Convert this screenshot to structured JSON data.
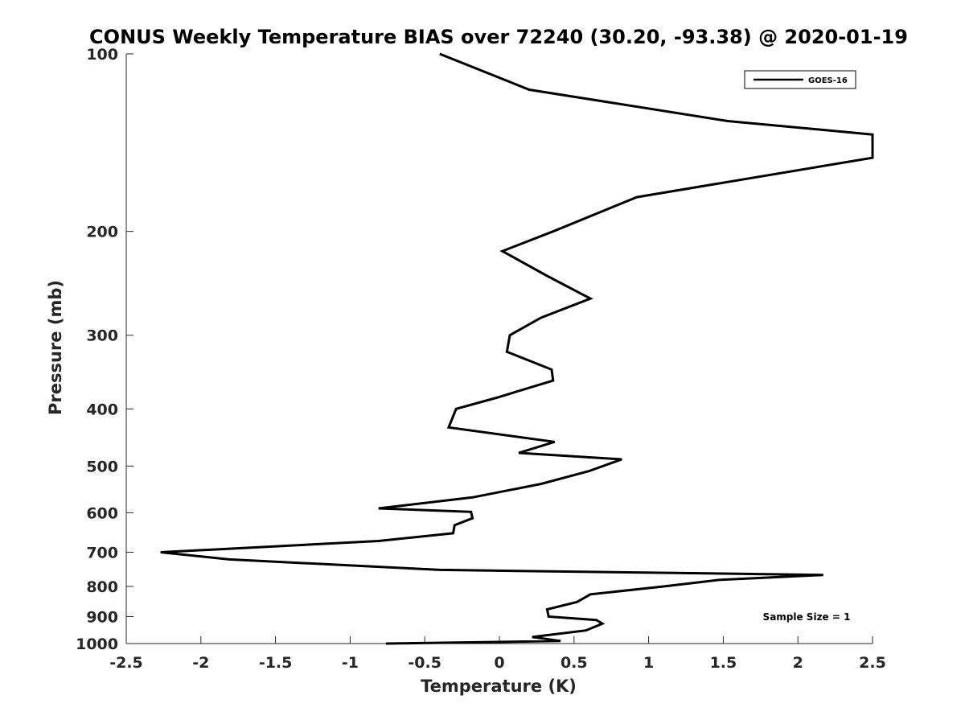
{
  "chart_data": {
    "type": "line",
    "title": "CONUS Weekly Temperature BIAS over 72240 (30.20, -93.38) @ 2020-01-19",
    "xlabel": "Temperature (K)",
    "ylabel": "Pressure (mb)",
    "xlim": [
      -2.5,
      2.5
    ],
    "ylim": [
      100,
      1000
    ],
    "y_scale": "log",
    "y_reversed": true,
    "grid": false,
    "legend_position": "top-right",
    "x_ticks": [
      "-2.5",
      "-2",
      "-1.5",
      "-1",
      "-0.5",
      "0",
      "0.5",
      "1",
      "1.5",
      "2",
      "2.5"
    ],
    "y_ticks": [
      "100",
      "200",
      "300",
      "400",
      "500",
      "600",
      "700",
      "800",
      "900",
      "1000"
    ],
    "annotation": "Sample Size = 1",
    "series": [
      {
        "name": "GOES-16",
        "color": "#000000",
        "points": [
          [
            -0.4,
            100
          ],
          [
            0.2,
            115
          ],
          [
            1.53,
            130
          ],
          [
            2.5,
            137
          ],
          [
            2.5,
            150
          ],
          [
            0.92,
            175
          ],
          [
            0.36,
            200
          ],
          [
            0.02,
            216
          ],
          [
            0.32,
            238
          ],
          [
            0.61,
            260
          ],
          [
            0.28,
            280
          ],
          [
            0.07,
            300
          ],
          [
            0.05,
            320
          ],
          [
            0.35,
            343
          ],
          [
            0.36,
            358
          ],
          [
            -0.02,
            383
          ],
          [
            -0.29,
            400
          ],
          [
            -0.34,
            430
          ],
          [
            0.37,
            455
          ],
          [
            0.13,
            475
          ],
          [
            0.82,
            487
          ],
          [
            0.6,
            510
          ],
          [
            0.28,
            536
          ],
          [
            -0.18,
            565
          ],
          [
            -0.81,
            590
          ],
          [
            -0.19,
            598
          ],
          [
            -0.18,
            613
          ],
          [
            -0.3,
            630
          ],
          [
            -0.31,
            650
          ],
          [
            -0.81,
            670
          ],
          [
            -2.27,
            700
          ],
          [
            -1.81,
            720
          ],
          [
            -0.4,
            750
          ],
          [
            2.17,
            765
          ],
          [
            1.47,
            780
          ],
          [
            1.1,
            800
          ],
          [
            0.61,
            825
          ],
          [
            0.52,
            850
          ],
          [
            0.32,
            875
          ],
          [
            0.33,
            900
          ],
          [
            0.65,
            912
          ],
          [
            0.69,
            925
          ],
          [
            0.58,
            950
          ],
          [
            0.22,
            975
          ],
          [
            0.41,
            990
          ],
          [
            -0.76,
            1000
          ]
        ]
      }
    ]
  }
}
